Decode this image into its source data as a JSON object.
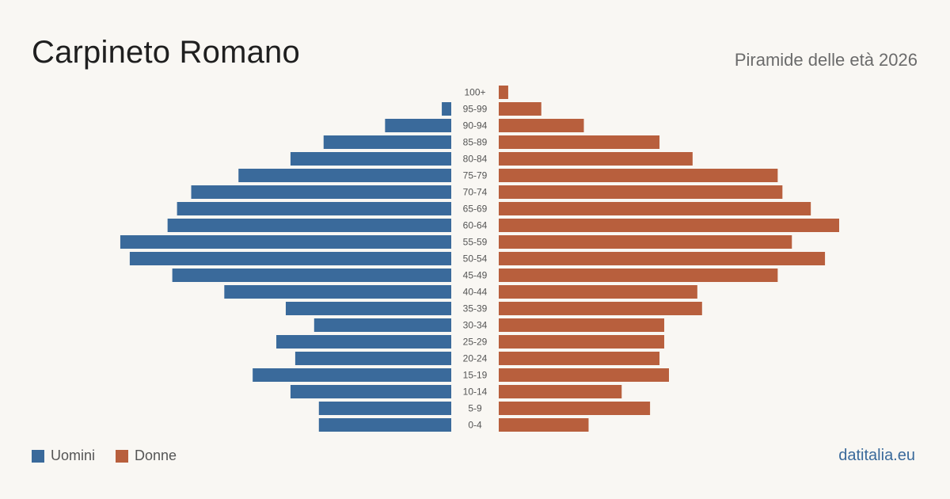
{
  "header": {
    "title": "Carpineto Romano",
    "subtitle": "Piramide delle età 2026"
  },
  "legend": {
    "men_label": "Uomini",
    "women_label": "Donne"
  },
  "footer": {
    "source": "datitalia.eu"
  },
  "colors": {
    "men": "#3a6a9b",
    "women": "#b85f3d",
    "background": "#f9f7f3",
    "age_label": "#555555"
  },
  "chart_data": {
    "type": "bar",
    "orientation": "horizontal-pyramid",
    "categories": [
      "100+",
      "95-99",
      "90-94",
      "85-89",
      "80-84",
      "75-79",
      "70-74",
      "65-69",
      "60-64",
      "55-59",
      "50-54",
      "45-49",
      "40-44",
      "35-39",
      "30-34",
      "25-29",
      "20-24",
      "15-19",
      "10-14",
      "5-9",
      "0-4"
    ],
    "series": [
      {
        "name": "Uomini",
        "side": "left",
        "values": [
          0,
          2,
          14,
          27,
          34,
          45,
          55,
          58,
          60,
          70,
          68,
          59,
          48,
          35,
          29,
          37,
          33,
          42,
          34,
          28,
          28
        ]
      },
      {
        "name": "Donne",
        "side": "right",
        "values": [
          2,
          9,
          18,
          34,
          41,
          59,
          60,
          66,
          72,
          62,
          69,
          59,
          42,
          43,
          35,
          35,
          34,
          36,
          26,
          32,
          19
        ]
      }
    ],
    "xlim": [
      0,
      72
    ],
    "grid": false,
    "legend_position": "bottom-left"
  }
}
